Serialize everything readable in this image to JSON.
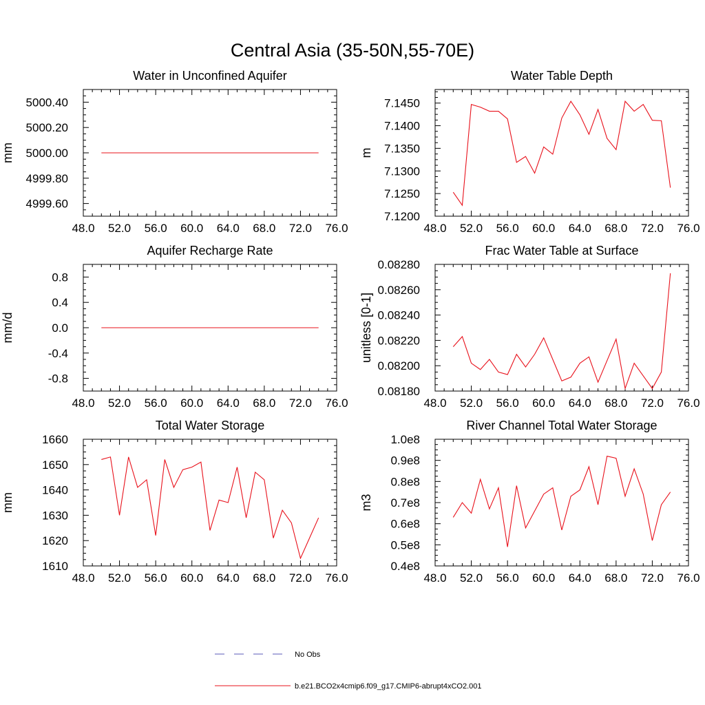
{
  "figure": {
    "title": "Central Asia (35-50N,55-70E)"
  },
  "legend": {
    "entries": [
      {
        "label": "No Obs",
        "color": "#5a5ab8",
        "style": "dashed"
      },
      {
        "label": "b.e21.BCO2x4cmip6.f09_g17.CMIP6-abrupt4xCO2.001",
        "color": "#e8101a",
        "style": "solid"
      }
    ]
  },
  "colors": {
    "series": "#e8101a",
    "axis": "#000000"
  },
  "chart_data": [
    {
      "type": "line",
      "title": "Water in Unconfined Aquifer",
      "ylabel": "mm",
      "xlim": [
        48,
        76
      ],
      "ylim": [
        4999.5,
        5000.5
      ],
      "xticks": [
        "48.0",
        "52.0",
        "56.0",
        "60.0",
        "64.0",
        "68.0",
        "72.0",
        "76.0"
      ],
      "yticks": [
        {
          "v": 4999.6,
          "label": "4999.60"
        },
        {
          "v": 4999.8,
          "label": "4999.80"
        },
        {
          "v": 5000.0,
          "label": "5000.00"
        },
        {
          "v": 5000.2,
          "label": "5000.20"
        },
        {
          "v": 5000.4,
          "label": "5000.40"
        }
      ],
      "x": [
        50,
        51,
        52,
        53,
        54,
        55,
        56,
        57,
        58,
        59,
        60,
        61,
        62,
        63,
        64,
        65,
        66,
        67,
        68,
        69,
        70,
        71,
        72,
        73,
        74
      ],
      "series": [
        {
          "values": [
            5000,
            5000,
            5000,
            5000,
            5000,
            5000,
            5000,
            5000,
            5000,
            5000,
            5000,
            5000,
            5000,
            5000,
            5000,
            5000,
            5000,
            5000,
            5000,
            5000,
            5000,
            5000,
            5000,
            5000,
            5000
          ]
        }
      ]
    },
    {
      "type": "line",
      "title": "Water Table Depth",
      "ylabel": "m",
      "xlim": [
        48,
        76
      ],
      "ylim": [
        7.12,
        7.148
      ],
      "xticks": [
        "48.0",
        "52.0",
        "56.0",
        "60.0",
        "64.0",
        "68.0",
        "72.0",
        "76.0"
      ],
      "yticks": [
        {
          "v": 7.12,
          "label": "7.1200"
        },
        {
          "v": 7.125,
          "label": "7.1250"
        },
        {
          "v": 7.13,
          "label": "7.1300"
        },
        {
          "v": 7.135,
          "label": "7.1350"
        },
        {
          "v": 7.14,
          "label": "7.1400"
        },
        {
          "v": 7.145,
          "label": "7.1450"
        }
      ],
      "x": [
        50,
        51,
        52,
        53,
        54,
        55,
        56,
        57,
        58,
        59,
        60,
        61,
        62,
        63,
        64,
        65,
        66,
        67,
        68,
        69,
        70,
        71,
        72,
        73,
        74
      ],
      "series": [
        {
          "values": [
            7.1253,
            7.1224,
            7.1447,
            7.1441,
            7.1432,
            7.1432,
            7.1415,
            7.1319,
            7.1332,
            7.1295,
            7.1353,
            7.1337,
            7.1417,
            7.1454,
            7.1424,
            7.1381,
            7.1436,
            7.1372,
            7.1347,
            7.1454,
            7.1432,
            7.1447,
            7.1412,
            7.1411,
            7.1263
          ]
        }
      ]
    },
    {
      "type": "line",
      "title": "Aquifer Recharge Rate",
      "ylabel": "mm/d",
      "xlim": [
        48,
        76
      ],
      "ylim": [
        -1.0,
        1.0
      ],
      "xticks": [
        "48.0",
        "52.0",
        "56.0",
        "60.0",
        "64.0",
        "68.0",
        "72.0",
        "76.0"
      ],
      "yticks": [
        {
          "v": -0.8,
          "label": "-0.8"
        },
        {
          "v": -0.4,
          "label": "-0.4"
        },
        {
          "v": 0.0,
          "label": "0.0"
        },
        {
          "v": 0.4,
          "label": "0.4"
        },
        {
          "v": 0.8,
          "label": "0.8"
        }
      ],
      "x": [
        50,
        51,
        52,
        53,
        54,
        55,
        56,
        57,
        58,
        59,
        60,
        61,
        62,
        63,
        64,
        65,
        66,
        67,
        68,
        69,
        70,
        71,
        72,
        73,
        74
      ],
      "series": [
        {
          "values": [
            0,
            0,
            0,
            0,
            0,
            0,
            0,
            0,
            0,
            0,
            0,
            0,
            0,
            0,
            0,
            0,
            0,
            0,
            0,
            0,
            0,
            0,
            0,
            0,
            0
          ]
        }
      ]
    },
    {
      "type": "line",
      "title": "Frac Water Table at Surface",
      "ylabel": "unitless [0-1]",
      "xlim": [
        48,
        76
      ],
      "ylim": [
        0.0818,
        0.0828
      ],
      "xticks": [
        "48.0",
        "52.0",
        "56.0",
        "60.0",
        "64.0",
        "68.0",
        "72.0",
        "76.0"
      ],
      "yticks": [
        {
          "v": 0.0818,
          "label": "0.08180"
        },
        {
          "v": 0.082,
          "label": "0.08200"
        },
        {
          "v": 0.0822,
          "label": "0.08220"
        },
        {
          "v": 0.0824,
          "label": "0.08240"
        },
        {
          "v": 0.0826,
          "label": "0.08260"
        },
        {
          "v": 0.0828,
          "label": "0.08280"
        }
      ],
      "x": [
        50,
        51,
        52,
        53,
        54,
        55,
        56,
        57,
        58,
        59,
        60,
        61,
        62,
        63,
        64,
        65,
        66,
        67,
        68,
        69,
        70,
        71,
        72,
        73,
        74
      ],
      "series": [
        {
          "values": [
            0.08215,
            0.08223,
            0.08202,
            0.08197,
            0.08205,
            0.08195,
            0.08193,
            0.08209,
            0.08199,
            0.08209,
            0.08222,
            0.08205,
            0.08188,
            0.08191,
            0.08202,
            0.08207,
            0.08187,
            0.08204,
            0.08221,
            0.08182,
            0.08202,
            0.08192,
            0.08182,
            0.08195,
            0.08273
          ]
        }
      ]
    },
    {
      "type": "line",
      "title": "Total Water Storage",
      "ylabel": "mm",
      "xlim": [
        48,
        76
      ],
      "ylim": [
        1610,
        1660
      ],
      "xticks": [
        "48.0",
        "52.0",
        "56.0",
        "60.0",
        "64.0",
        "68.0",
        "72.0",
        "76.0"
      ],
      "yticks": [
        {
          "v": 1610,
          "label": "1610"
        },
        {
          "v": 1620,
          "label": "1620"
        },
        {
          "v": 1630,
          "label": "1630"
        },
        {
          "v": 1640,
          "label": "1640"
        },
        {
          "v": 1650,
          "label": "1650"
        },
        {
          "v": 1660,
          "label": "1660"
        }
      ],
      "x": [
        50,
        51,
        52,
        53,
        54,
        55,
        56,
        57,
        58,
        59,
        60,
        61,
        62,
        63,
        64,
        65,
        66,
        67,
        68,
        69,
        70,
        71,
        72,
        73,
        74
      ],
      "series": [
        {
          "values": [
            1652,
            1653,
            1630,
            1653,
            1641,
            1644,
            1622,
            1652,
            1641,
            1648,
            1649,
            1651,
            1624,
            1636,
            1635,
            1649,
            1629,
            1647,
            1644,
            1621,
            1632,
            1627,
            1613,
            1621,
            1629
          ]
        }
      ]
    },
    {
      "type": "line",
      "title": "River Channel Total Water Storage",
      "ylabel": "m3",
      "xlim": [
        48,
        76
      ],
      "ylim": [
        40000000.0,
        100000000.0
      ],
      "xticks": [
        "48.0",
        "52.0",
        "56.0",
        "60.0",
        "64.0",
        "68.0",
        "72.0",
        "76.0"
      ],
      "yticks": [
        {
          "v": 40000000.0,
          "label": "0.4e8"
        },
        {
          "v": 50000000.0,
          "label": "0.5e8"
        },
        {
          "v": 60000000.0,
          "label": "0.6e8"
        },
        {
          "v": 70000000.0,
          "label": "0.7e8"
        },
        {
          "v": 80000000.0,
          "label": "0.8e8"
        },
        {
          "v": 90000000.0,
          "label": "0.9e8"
        },
        {
          "v": 100000000.0,
          "label": "1.0e8"
        }
      ],
      "x": [
        50,
        51,
        52,
        53,
        54,
        55,
        56,
        57,
        58,
        59,
        60,
        61,
        62,
        63,
        64,
        65,
        66,
        67,
        68,
        69,
        70,
        71,
        72,
        73,
        74
      ],
      "series": [
        {
          "values": [
            63000000.0,
            70000000.0,
            65000000.0,
            81000000.0,
            67000000.0,
            77000000.0,
            49000000.0,
            78000000.0,
            58000000.0,
            66000000.0,
            74000000.0,
            77000000.0,
            57000000.0,
            73000000.0,
            76000000.0,
            87000000.0,
            69000000.0,
            92000000.0,
            91000000.0,
            73000000.0,
            86000000.0,
            74000000.0,
            52000000.0,
            69000000.0,
            75000000.0
          ]
        }
      ]
    }
  ]
}
